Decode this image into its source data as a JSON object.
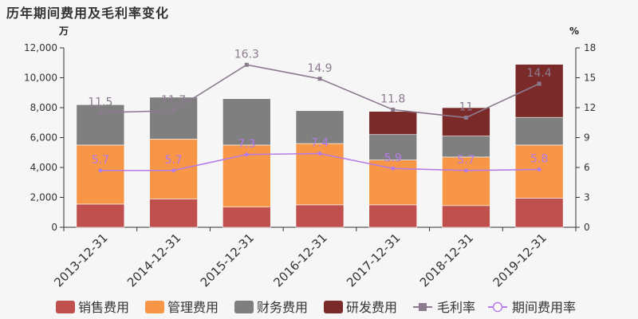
{
  "title": "历年期间费用及毛利率变化",
  "colors": {
    "sales": "#c0504d",
    "admin": "#f79646",
    "finance": "#7f7f7f",
    "rnd": "#7b2a2a",
    "gross_margin": "#8c7b8f",
    "expense_rate": "#b57be8"
  },
  "chart_data": {
    "type": "bar",
    "stacked": true,
    "categories": [
      "2013-12-31",
      "2014-12-31",
      "2015-12-31",
      "2016-12-31",
      "2017-12-31",
      "2018-12-31",
      "2019-12-31"
    ],
    "left_axis": {
      "unit": "万",
      "ylim": [
        0,
        12000
      ],
      "ticks": [
        0,
        2000,
        4000,
        6000,
        8000,
        10000,
        12000
      ],
      "tick_labels": [
        "0",
        "2,000",
        "4,000",
        "6,000",
        "8,000",
        "10,000",
        "12,000"
      ]
    },
    "right_axis": {
      "unit": "%",
      "ylim": [
        0,
        18
      ],
      "ticks": [
        0,
        3,
        6,
        9,
        12,
        15,
        18
      ],
      "tick_labels": [
        "0",
        "3",
        "6",
        "9",
        "12",
        "15",
        "18"
      ]
    },
    "series": [
      {
        "name": "销售费用",
        "type": "bar",
        "axis": "left",
        "values": [
          1550,
          1900,
          1350,
          1500,
          1500,
          1450,
          1950
        ]
      },
      {
        "name": "管理费用",
        "type": "bar",
        "axis": "left",
        "values": [
          3950,
          4000,
          4150,
          4100,
          3000,
          3250,
          3550
        ]
      },
      {
        "name": "财务费用",
        "type": "bar",
        "axis": "left",
        "values": [
          2700,
          2800,
          3100,
          2200,
          1700,
          1400,
          1850
        ]
      },
      {
        "name": "研发费用",
        "type": "bar",
        "axis": "left",
        "values": [
          0,
          0,
          0,
          0,
          1550,
          1900,
          3550
        ]
      },
      {
        "name": "毛利率",
        "type": "line",
        "axis": "right",
        "values": [
          11.5,
          11.7,
          16.3,
          14.9,
          11.8,
          11,
          14.4
        ],
        "labels": [
          "11.5",
          "11.7",
          "16.3",
          "14.9",
          "11.8",
          "11",
          "14.4"
        ]
      },
      {
        "name": "期间费用率",
        "type": "line",
        "axis": "right",
        "values": [
          5.7,
          5.7,
          7.3,
          7.4,
          5.9,
          5.7,
          5.8
        ],
        "labels": [
          "5.7",
          "5.7",
          "7.3",
          "7.4",
          "5.9",
          "5.7",
          "5.8"
        ]
      }
    ],
    "legend_position": "bottom",
    "grid": false
  }
}
